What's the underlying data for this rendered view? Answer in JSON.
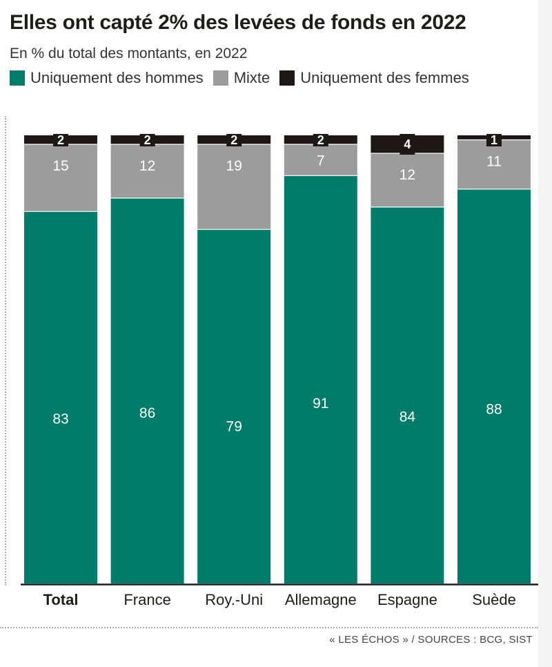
{
  "header": {
    "title": "Elles ont capté 2% des levées de fonds en 2022",
    "subtitle": "En % du total des montants, en 2022"
  },
  "legend": [
    {
      "label": "Uniquement des hommes",
      "color": "#007d6a"
    },
    {
      "label": "Mixte",
      "color": "#9d9c9c"
    },
    {
      "label": "Uniquement des femmes",
      "color": "#1d1816"
    }
  ],
  "source": "« LES ÉCHOS » / SOURCES : BCG, SIST",
  "chart_data": {
    "type": "bar",
    "stacked": true,
    "title": "Elles ont capté 2% des levées de fonds en 2022",
    "subtitle": "En % du total des montants, en 2022",
    "categories": [
      "Total",
      "France",
      "Roy.-Uni",
      "Allemagne",
      "Espagne",
      "Suède"
    ],
    "bold_categories": [
      "Total"
    ],
    "ylim": [
      0,
      100
    ],
    "series": [
      {
        "name": "Uniquement des hommes",
        "color": "#007d6a",
        "values": [
          83,
          86,
          79,
          91,
          84,
          88
        ]
      },
      {
        "name": "Mixte",
        "color": "#9d9c9c",
        "values": [
          15,
          12,
          19,
          7,
          12,
          11
        ]
      },
      {
        "name": "Uniquement des femmes",
        "color": "#1d1816",
        "values": [
          2,
          2,
          2,
          2,
          4,
          1
        ]
      }
    ]
  }
}
